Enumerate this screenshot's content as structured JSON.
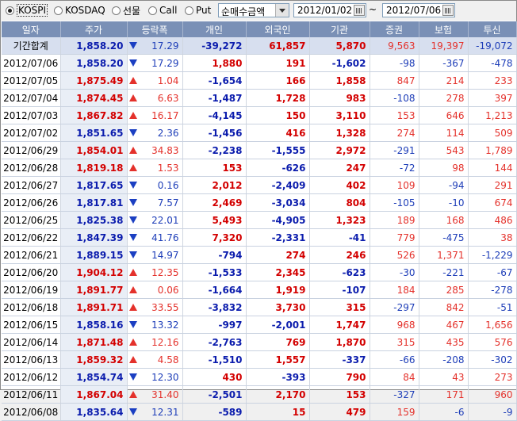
{
  "markets": [
    {
      "label": "KOSPI",
      "checked": true
    },
    {
      "label": "KOSDAQ",
      "checked": false
    },
    {
      "label": "선물",
      "checked": false
    },
    {
      "label": "Call",
      "checked": false
    },
    {
      "label": "Put",
      "checked": false
    }
  ],
  "select": {
    "value": "순매수금액"
  },
  "date_from": "2012/01/02",
  "date_tilde": "~",
  "date_to": "2012/07/06",
  "columns": [
    "일자",
    "주가",
    "등락폭",
    "개인",
    "외국인",
    "기관",
    "증권",
    "보험",
    "투신"
  ],
  "colors": {
    "header_bg": "#7a90b6",
    "up": "#d30000",
    "down": "#0b1cad"
  },
  "rows": [
    {
      "date": "기간합계",
      "price": "1,858.20",
      "dir": "down",
      "chg": "17.29",
      "ind": "-39,272",
      "frn": "61,857",
      "inst": "5,870",
      "sec": "9,563",
      "ins": "19,397",
      "trust": "-19,072"
    },
    {
      "date": "2012/07/06",
      "price": "1,858.20",
      "dir": "down",
      "chg": "17.29",
      "ind": "1,880",
      "frn": "191",
      "inst": "-1,602",
      "sec": "-98",
      "ins": "-367",
      "trust": "-478"
    },
    {
      "date": "2012/07/05",
      "price": "1,875.49",
      "dir": "up",
      "chg": "1.04",
      "ind": "-1,654",
      "frn": "166",
      "inst": "1,858",
      "sec": "847",
      "ins": "214",
      "trust": "233"
    },
    {
      "date": "2012/07/04",
      "price": "1,874.45",
      "dir": "up",
      "chg": "6.63",
      "ind": "-1,487",
      "frn": "1,728",
      "inst": "983",
      "sec": "-108",
      "ins": "278",
      "trust": "397"
    },
    {
      "date": "2012/07/03",
      "price": "1,867.82",
      "dir": "up",
      "chg": "16.17",
      "ind": "-4,145",
      "frn": "150",
      "inst": "3,110",
      "sec": "153",
      "ins": "646",
      "trust": "1,213"
    },
    {
      "date": "2012/07/02",
      "price": "1,851.65",
      "dir": "down",
      "chg": "2.36",
      "ind": "-1,456",
      "frn": "416",
      "inst": "1,328",
      "sec": "274",
      "ins": "114",
      "trust": "509"
    },
    {
      "date": "2012/06/29",
      "price": "1,854.01",
      "dir": "up",
      "chg": "34.83",
      "ind": "-2,238",
      "frn": "-1,555",
      "inst": "2,972",
      "sec": "-291",
      "ins": "543",
      "trust": "1,789"
    },
    {
      "date": "2012/06/28",
      "price": "1,819.18",
      "dir": "up",
      "chg": "1.53",
      "ind": "153",
      "frn": "-626",
      "inst": "247",
      "sec": "-72",
      "ins": "98",
      "trust": "144"
    },
    {
      "date": "2012/06/27",
      "price": "1,817.65",
      "dir": "down",
      "chg": "0.16",
      "ind": "2,012",
      "frn": "-2,409",
      "inst": "402",
      "sec": "109",
      "ins": "-94",
      "trust": "291"
    },
    {
      "date": "2012/06/26",
      "price": "1,817.81",
      "dir": "down",
      "chg": "7.57",
      "ind": "2,469",
      "frn": "-3,034",
      "inst": "804",
      "sec": "-105",
      "ins": "-10",
      "trust": "674"
    },
    {
      "date": "2012/06/25",
      "price": "1,825.38",
      "dir": "down",
      "chg": "22.01",
      "ind": "5,493",
      "frn": "-4,905",
      "inst": "1,323",
      "sec": "189",
      "ins": "168",
      "trust": "486"
    },
    {
      "date": "2012/06/22",
      "price": "1,847.39",
      "dir": "down",
      "chg": "41.76",
      "ind": "7,320",
      "frn": "-2,331",
      "inst": "-41",
      "sec": "779",
      "ins": "-475",
      "trust": "38"
    },
    {
      "date": "2012/06/21",
      "price": "1,889.15",
      "dir": "down",
      "chg": "14.97",
      "ind": "-794",
      "frn": "274",
      "inst": "246",
      "sec": "526",
      "ins": "1,371",
      "trust": "-1,229"
    },
    {
      "date": "2012/06/20",
      "price": "1,904.12",
      "dir": "up",
      "chg": "12.35",
      "ind": "-1,533",
      "frn": "2,345",
      "inst": "-623",
      "sec": "-30",
      "ins": "-221",
      "trust": "-67"
    },
    {
      "date": "2012/06/19",
      "price": "1,891.77",
      "dir": "up",
      "chg": "0.06",
      "ind": "-1,664",
      "frn": "1,919",
      "inst": "-107",
      "sec": "184",
      "ins": "285",
      "trust": "-278"
    },
    {
      "date": "2012/06/18",
      "price": "1,891.71",
      "dir": "up",
      "chg": "33.55",
      "ind": "-3,832",
      "frn": "3,730",
      "inst": "315",
      "sec": "-297",
      "ins": "842",
      "trust": "-51"
    },
    {
      "date": "2012/06/15",
      "price": "1,858.16",
      "dir": "down",
      "chg": "13.32",
      "ind": "-997",
      "frn": "-2,001",
      "inst": "1,747",
      "sec": "968",
      "ins": "467",
      "trust": "1,656"
    },
    {
      "date": "2012/06/14",
      "price": "1,871.48",
      "dir": "up",
      "chg": "12.16",
      "ind": "-2,763",
      "frn": "769",
      "inst": "1,870",
      "sec": "315",
      "ins": "435",
      "trust": "576"
    },
    {
      "date": "2012/06/13",
      "price": "1,859.32",
      "dir": "up",
      "chg": "4.58",
      "ind": "-1,510",
      "frn": "1,557",
      "inst": "-337",
      "sec": "-66",
      "ins": "-208",
      "trust": "-302"
    },
    {
      "date": "2012/06/12",
      "price": "1,854.74",
      "dir": "down",
      "chg": "12.30",
      "ind": "430",
      "frn": "-393",
      "inst": "790",
      "sec": "84",
      "ins": "43",
      "trust": "273"
    },
    {
      "date": "2012/06/11",
      "price": "1,867.04",
      "dir": "up",
      "chg": "31.40",
      "ind": "-2,501",
      "frn": "2,170",
      "inst": "153",
      "sec": "-327",
      "ins": "171",
      "trust": "960"
    },
    {
      "date": "2012/06/08",
      "price": "1,835.64",
      "dir": "down",
      "chg": "12.31",
      "ind": "-589",
      "frn": "15",
      "inst": "479",
      "sec": "159",
      "ins": "-6",
      "trust": "-9"
    }
  ]
}
